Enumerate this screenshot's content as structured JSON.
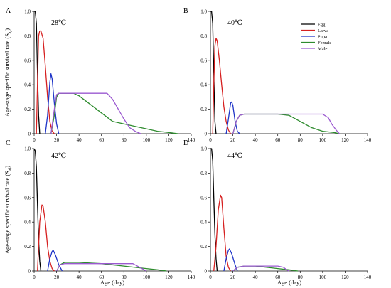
{
  "figure": {
    "x_axis_title": "Age (day)",
    "y_axis_title": "Age-stage specific survival rate (S",
    "y_axis_sub": "xj",
    "y_axis_close": ")"
  },
  "legend": {
    "placement": "top-right",
    "entries": [
      {
        "name": "Egg",
        "color": "#000000"
      },
      {
        "name": "Larva",
        "color": "#d62020"
      },
      {
        "name": "Pupa",
        "color": "#1f35c8"
      },
      {
        "name": "Female",
        "color": "#2e8b2e"
      },
      {
        "name": "Male",
        "color": "#9b59d0"
      }
    ]
  },
  "chart_data": [
    {
      "panel": "A",
      "temperature": "28℃",
      "type": "line",
      "xlim": [
        0,
        140
      ],
      "ylim": [
        0,
        1.0
      ],
      "xticks": [
        0,
        20,
        40,
        60,
        80,
        100,
        120,
        140
      ],
      "yticks": [
        0,
        0.2,
        0.4,
        0.6,
        0.8,
        1.0
      ],
      "ytick_labels": [
        "0",
        "0.2",
        "0.4",
        "0.6",
        "0.8",
        "1.0"
      ],
      "series": [
        {
          "name": "Egg",
          "color": "#000000",
          "points": [
            [
              0,
              1.0
            ],
            [
              1,
              1.0
            ],
            [
              2,
              0.9
            ],
            [
              3,
              0.5
            ],
            [
              4,
              0.15
            ],
            [
              5,
              0
            ]
          ]
        },
        {
          "name": "Larva",
          "color": "#d62020",
          "points": [
            [
              2,
              0
            ],
            [
              3,
              0.4
            ],
            [
              4,
              0.8
            ],
            [
              5,
              0.84
            ],
            [
              6,
              0.84
            ],
            [
              8,
              0.78
            ],
            [
              10,
              0.55
            ],
            [
              12,
              0.3
            ],
            [
              14,
              0.1
            ],
            [
              16,
              0.02
            ],
            [
              18,
              0
            ]
          ]
        },
        {
          "name": "Pupa",
          "color": "#1f35c8",
          "points": [
            [
              10,
              0
            ],
            [
              12,
              0.15
            ],
            [
              14,
              0.42
            ],
            [
              15,
              0.49
            ],
            [
              16,
              0.45
            ],
            [
              18,
              0.25
            ],
            [
              20,
              0.08
            ],
            [
              22,
              0
            ]
          ]
        },
        {
          "name": "Female",
          "color": "#2e8b2e",
          "points": [
            [
              15,
              0
            ],
            [
              18,
              0.15
            ],
            [
              20,
              0.3
            ],
            [
              22,
              0.33
            ],
            [
              35,
              0.33
            ],
            [
              40,
              0.31
            ],
            [
              50,
              0.24
            ],
            [
              60,
              0.17
            ],
            [
              70,
              0.1
            ],
            [
              80,
              0.08
            ],
            [
              90,
              0.06
            ],
            [
              100,
              0.04
            ],
            [
              110,
              0.02
            ],
            [
              120,
              0.01
            ],
            [
              128,
              0
            ]
          ]
        },
        {
          "name": "Male",
          "color": "#9b59d0",
          "points": [
            [
              15,
              0
            ],
            [
              18,
              0.2
            ],
            [
              20,
              0.32
            ],
            [
              22,
              0.33
            ],
            [
              65,
              0.33
            ],
            [
              70,
              0.28
            ],
            [
              75,
              0.2
            ],
            [
              80,
              0.12
            ],
            [
              85,
              0.05
            ],
            [
              90,
              0.02
            ],
            [
              95,
              0
            ]
          ]
        }
      ]
    },
    {
      "panel": "B",
      "temperature": "40℃",
      "type": "line",
      "xlim": [
        0,
        140
      ],
      "ylim": [
        0,
        1.0
      ],
      "xticks": [
        0,
        20,
        40,
        60,
        80,
        100,
        120,
        140
      ],
      "yticks": [
        0,
        0.2,
        0.4,
        0.6,
        0.8,
        1.0
      ],
      "ytick_labels": [
        "0",
        "0.2",
        "0.4",
        "0.6",
        "0.8",
        "1.0"
      ],
      "series": [
        {
          "name": "Egg",
          "color": "#000000",
          "points": [
            [
              0,
              1.0
            ],
            [
              1,
              1.0
            ],
            [
              2,
              0.9
            ],
            [
              3,
              0.5
            ],
            [
              4,
              0.1
            ],
            [
              5,
              0
            ]
          ]
        },
        {
          "name": "Larva",
          "color": "#d62020",
          "points": [
            [
              2,
              0
            ],
            [
              3,
              0.4
            ],
            [
              4,
              0.72
            ],
            [
              5,
              0.78
            ],
            [
              6,
              0.76
            ],
            [
              8,
              0.6
            ],
            [
              10,
              0.4
            ],
            [
              12,
              0.22
            ],
            [
              14,
              0.1
            ],
            [
              16,
              0.03
            ],
            [
              18,
              0
            ]
          ]
        },
        {
          "name": "Pupa",
          "color": "#1f35c8",
          "points": [
            [
              14,
              0
            ],
            [
              16,
              0.12
            ],
            [
              18,
              0.25
            ],
            [
              19,
              0.26
            ],
            [
              20,
              0.23
            ],
            [
              22,
              0.1
            ],
            [
              24,
              0.02
            ],
            [
              26,
              0
            ]
          ]
        },
        {
          "name": "Female",
          "color": "#2e8b2e",
          "points": [
            [
              20,
              0
            ],
            [
              23,
              0.1
            ],
            [
              26,
              0.15
            ],
            [
              30,
              0.16
            ],
            [
              60,
              0.16
            ],
            [
              70,
              0.15
            ],
            [
              80,
              0.1
            ],
            [
              90,
              0.05
            ],
            [
              100,
              0.02
            ],
            [
              110,
              0.01
            ],
            [
              115,
              0
            ]
          ]
        },
        {
          "name": "Male",
          "color": "#9b59d0",
          "points": [
            [
              20,
              0
            ],
            [
              23,
              0.1
            ],
            [
              26,
              0.15
            ],
            [
              30,
              0.16
            ],
            [
              100,
              0.16
            ],
            [
              105,
              0.13
            ],
            [
              108,
              0.08
            ],
            [
              112,
              0.03
            ],
            [
              115,
              0
            ]
          ]
        }
      ]
    },
    {
      "panel": "C",
      "temperature": "42℃",
      "type": "line",
      "xlim": [
        0,
        140
      ],
      "ylim": [
        0,
        1.0
      ],
      "xticks": [
        0,
        20,
        40,
        60,
        80,
        100,
        120,
        140
      ],
      "yticks": [
        0,
        0.2,
        0.4,
        0.6,
        0.8,
        1.0
      ],
      "ytick_labels": [
        "0",
        "0.2",
        "0.4",
        "0.6",
        "0.8",
        "1.0"
      ],
      "series": [
        {
          "name": "Egg",
          "color": "#000000",
          "points": [
            [
              0,
              1.0
            ],
            [
              1,
              0.98
            ],
            [
              2,
              0.85
            ],
            [
              3,
              0.55
            ],
            [
              4,
              0.25
            ],
            [
              5,
              0.08
            ],
            [
              6,
              0
            ]
          ]
        },
        {
          "name": "Larva",
          "color": "#d62020",
          "points": [
            [
              3,
              0
            ],
            [
              5,
              0.4
            ],
            [
              7,
              0.54
            ],
            [
              8,
              0.53
            ],
            [
              10,
              0.4
            ],
            [
              12,
              0.2
            ],
            [
              14,
              0.08
            ],
            [
              16,
              0.02
            ],
            [
              18,
              0
            ]
          ]
        },
        {
          "name": "Pupa",
          "color": "#1f35c8",
          "points": [
            [
              12,
              0
            ],
            [
              14,
              0.1
            ],
            [
              16,
              0.16
            ],
            [
              17,
              0.17
            ],
            [
              19,
              0.13
            ],
            [
              22,
              0.05
            ],
            [
              25,
              0
            ]
          ]
        },
        {
          "name": "Female",
          "color": "#2e8b2e",
          "points": [
            [
              20,
              0
            ],
            [
              23,
              0.05
            ],
            [
              27,
              0.07
            ],
            [
              40,
              0.07
            ],
            [
              60,
              0.06
            ],
            [
              80,
              0.04
            ],
            [
              100,
              0.02
            ],
            [
              110,
              0.01
            ],
            [
              118,
              0
            ]
          ]
        },
        {
          "name": "Male",
          "color": "#9b59d0",
          "points": [
            [
              20,
              0
            ],
            [
              23,
              0.05
            ],
            [
              27,
              0.06
            ],
            [
              88,
              0.06
            ],
            [
              92,
              0.04
            ],
            [
              96,
              0.02
            ],
            [
              100,
              0
            ]
          ]
        }
      ]
    },
    {
      "panel": "D",
      "temperature": "44℃",
      "type": "line",
      "xlim": [
        0,
        140
      ],
      "ylim": [
        0,
        1.0
      ],
      "xticks": [
        0,
        20,
        40,
        60,
        80,
        100,
        120,
        140
      ],
      "yticks": [
        0,
        0.2,
        0.4,
        0.6,
        0.8,
        1.0
      ],
      "ytick_labels": [
        "0",
        "0.2",
        "0.4",
        "0.6",
        "0.8",
        "1.0"
      ],
      "series": [
        {
          "name": "Egg",
          "color": "#000000",
          "points": [
            [
              0,
              1.0
            ],
            [
              1,
              1.0
            ],
            [
              2,
              0.9
            ],
            [
              3,
              0.6
            ],
            [
              4,
              0.3
            ],
            [
              5,
              0.1
            ],
            [
              6,
              0
            ]
          ]
        },
        {
          "name": "Larva",
          "color": "#d62020",
          "points": [
            [
              3,
              0
            ],
            [
              5,
              0.2
            ],
            [
              7,
              0.5
            ],
            [
              9,
              0.62
            ],
            [
              10,
              0.6
            ],
            [
              12,
              0.35
            ],
            [
              14,
              0.12
            ],
            [
              16,
              0.03
            ],
            [
              18,
              0
            ]
          ]
        },
        {
          "name": "Pupa",
          "color": "#1f35c8",
          "points": [
            [
              12,
              0
            ],
            [
              14,
              0.1
            ],
            [
              16,
              0.17
            ],
            [
              17,
              0.18
            ],
            [
              19,
              0.14
            ],
            [
              22,
              0.05
            ],
            [
              24,
              0
            ]
          ]
        },
        {
          "name": "Female",
          "color": "#2e8b2e",
          "points": [
            [
              20,
              0
            ],
            [
              24,
              0.03
            ],
            [
              30,
              0.04
            ],
            [
              40,
              0.04
            ],
            [
              50,
              0.03
            ],
            [
              60,
              0.02
            ],
            [
              70,
              0.01
            ],
            [
              78,
              0
            ]
          ]
        },
        {
          "name": "Male",
          "color": "#9b59d0",
          "points": [
            [
              20,
              0
            ],
            [
              24,
              0.03
            ],
            [
              30,
              0.04
            ],
            [
              60,
              0.04
            ],
            [
              65,
              0.03
            ],
            [
              68,
              0.01
            ],
            [
              70,
              0
            ]
          ]
        }
      ]
    }
  ]
}
